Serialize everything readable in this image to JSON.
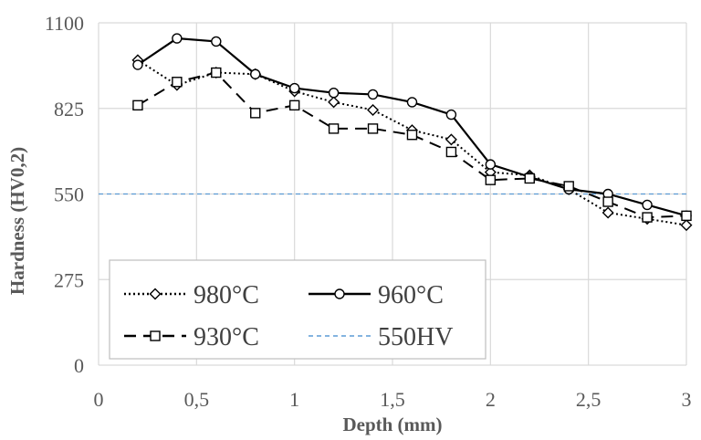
{
  "chart_data": {
    "type": "line",
    "title": "",
    "xlabel": "Depth (mm)",
    "ylabel": "Hardness (HV0,2)",
    "xlim": [
      0,
      3
    ],
    "ylim": [
      0,
      1100
    ],
    "x_ticks": [
      {
        "value": 0,
        "label": "0"
      },
      {
        "value": 0.5,
        "label": "0,5"
      },
      {
        "value": 1,
        "label": "1"
      },
      {
        "value": 1.5,
        "label": "1,5"
      },
      {
        "value": 2,
        "label": "2"
      },
      {
        "value": 2.5,
        "label": "2,5"
      },
      {
        "value": 3,
        "label": "3"
      }
    ],
    "y_ticks": [
      {
        "value": 0,
        "label": "0"
      },
      {
        "value": 275,
        "label": "275"
      },
      {
        "value": 550,
        "label": "550"
      },
      {
        "value": 825,
        "label": "825"
      },
      {
        "value": 1100,
        "label": "1100"
      }
    ],
    "grid": true,
    "legend_position": "bottom-left",
    "series": [
      {
        "name": "980°C",
        "color": "#000000",
        "line_style": "dotted",
        "marker": "diamond",
        "x": [
          0.2,
          0.4,
          0.6,
          0.8,
          1.0,
          1.2,
          1.4,
          1.6,
          1.8,
          2.0,
          2.2,
          2.4,
          2.6,
          2.8,
          3.0
        ],
        "y": [
          980,
          900,
          940,
          935,
          880,
          845,
          820,
          755,
          725,
          620,
          610,
          565,
          490,
          470,
          450
        ]
      },
      {
        "name": "960°C",
        "color": "#000000",
        "line_style": "solid",
        "marker": "circle",
        "x": [
          0.2,
          0.4,
          0.6,
          0.8,
          1.0,
          1.2,
          1.4,
          1.6,
          1.8,
          2.0,
          2.2,
          2.4,
          2.6,
          2.8,
          3.0
        ],
        "y": [
          965,
          1050,
          1040,
          935,
          890,
          875,
          870,
          845,
          805,
          645,
          605,
          565,
          550,
          515,
          480
        ]
      },
      {
        "name": "930°C",
        "color": "#000000",
        "line_style": "dashed",
        "marker": "square",
        "x": [
          0.2,
          0.4,
          0.6,
          0.8,
          1.0,
          1.2,
          1.4,
          1.6,
          1.8,
          2.0,
          2.2,
          2.4,
          2.6,
          2.8,
          3.0
        ],
        "y": [
          835,
          910,
          940,
          810,
          835,
          760,
          760,
          740,
          685,
          595,
          600,
          575,
          525,
          475,
          480
        ]
      },
      {
        "name": "550HV",
        "color": "#5B9BD5",
        "line_style": "short-dash",
        "marker": "none",
        "x": [
          0,
          3
        ],
        "y": [
          550,
          550
        ]
      }
    ]
  }
}
